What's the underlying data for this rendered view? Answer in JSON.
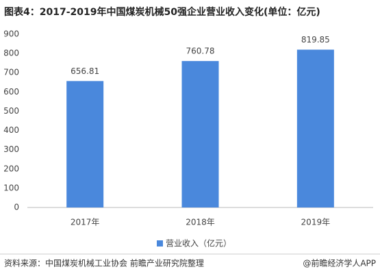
{
  "chart_data": {
    "type": "bar",
    "title": "图表4：2017-2019年中国煤炭机械50强企业营业收入变化(单位：亿元)",
    "categories": [
      "2017年",
      "2018年",
      "2019年"
    ],
    "series": [
      {
        "name": "营业收入（亿元）",
        "color": "#4a88dc",
        "values": [
          656.81,
          760.78,
          819.85
        ]
      }
    ],
    "ylim": [
      0,
      900
    ],
    "yticks": [
      0,
      100,
      200,
      300,
      400,
      500,
      600,
      700,
      800,
      900
    ],
    "grid": false,
    "legend": "bottom",
    "source": "资料来源：中国煤炭机械工业协会 前瞻产业研究院整理",
    "credit": "@前瞻经济学人APP"
  }
}
